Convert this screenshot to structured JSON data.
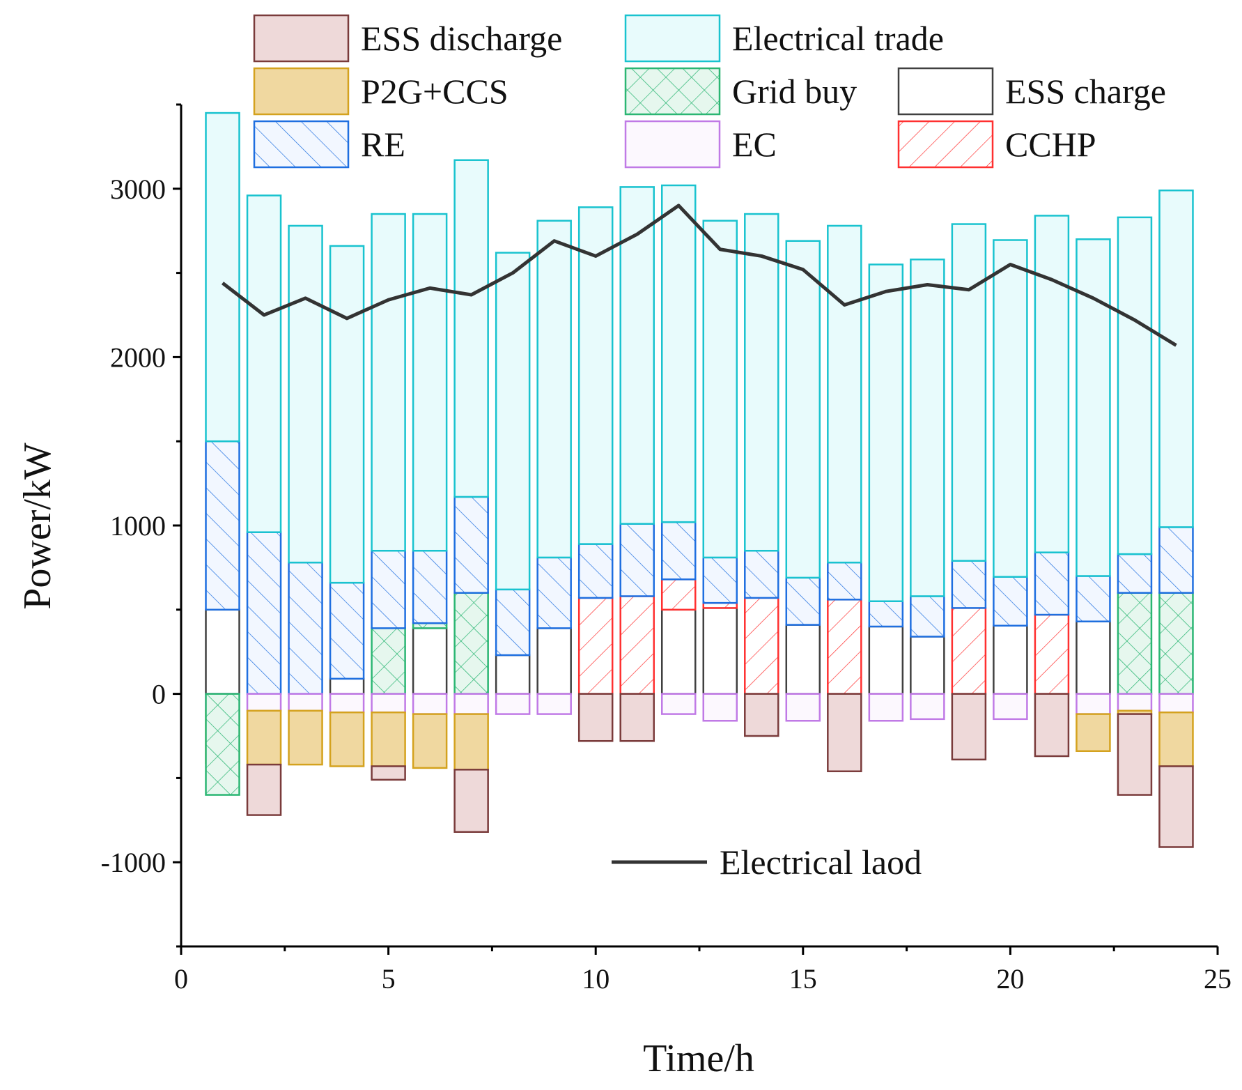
{
  "chart_data": {
    "type": "bar",
    "title": "",
    "xlabel": "Time/h",
    "ylabel": "Power/kW",
    "xlim": [
      0,
      25
    ],
    "ylim": [
      -1500,
      3500
    ],
    "xticks": [
      "0",
      "5",
      "10",
      "15",
      "20",
      "25"
    ],
    "yticks": [
      "-1000",
      "0",
      "1000",
      "2000",
      "3000"
    ],
    "x": [
      1,
      2,
      3,
      4,
      5,
      6,
      7,
      8,
      9,
      10,
      11,
      12,
      13,
      14,
      15,
      16,
      17,
      18,
      19,
      20,
      21,
      22,
      23,
      24
    ],
    "series": [
      {
        "name": "ESS charge",
        "key": "ess_charge",
        "stroke": "#404040",
        "fill": "#ffffff",
        "pattern": "none",
        "values": [
          500,
          0,
          0,
          90,
          0,
          390,
          0,
          230,
          390,
          0,
          0,
          500,
          510,
          0,
          410,
          0,
          400,
          340,
          0,
          405,
          0,
          430,
          0,
          0
        ]
      },
      {
        "name": "CCHP",
        "key": "cchp",
        "stroke": "#ff3030",
        "fill": "#ffffff",
        "pattern": "fdiag",
        "values": [
          0,
          0,
          0,
          0,
          0,
          0,
          0,
          0,
          0,
          570,
          580,
          180,
          30,
          570,
          0,
          560,
          0,
          0,
          510,
          0,
          470,
          0,
          0,
          0
        ]
      },
      {
        "name": "Grid buy",
        "key": "grid_buy",
        "stroke": "#2bb673",
        "fill": "#e6f7ee",
        "pattern": "cross",
        "values": [
          0,
          0,
          0,
          0,
          390,
          30,
          600,
          0,
          0,
          0,
          0,
          0,
          0,
          0,
          0,
          0,
          0,
          0,
          0,
          0,
          0,
          0,
          600,
          600
        ]
      },
      {
        "name": "RE",
        "key": "re",
        "stroke": "#1f6fe0",
        "fill": "#f2f7ff",
        "pattern": "bdiag",
        "values": [
          1000,
          960,
          780,
          570,
          460,
          430,
          570,
          390,
          420,
          320,
          430,
          340,
          270,
          280,
          280,
          220,
          150,
          240,
          280,
          290,
          370,
          270,
          230,
          390
        ]
      },
      {
        "name": "Electrical trade",
        "key": "trade",
        "stroke": "#19c3cf",
        "fill": "#e8fbfc",
        "pattern": "none",
        "values": [
          1950,
          2000,
          2000,
          2000,
          2000,
          2000,
          2000,
          2000,
          2000,
          2000,
          2000,
          2000,
          2000,
          2000,
          2000,
          2000,
          2000,
          2000,
          2000,
          2000,
          2000,
          2000,
          2000,
          2000
        ]
      },
      {
        "name": "EC",
        "key": "ec",
        "stroke": "#c07ae6",
        "fill": "#fcf8fe",
        "pattern": "none",
        "values": [
          -100,
          -100,
          -100,
          -110,
          -110,
          -120,
          -120,
          -120,
          -120,
          0,
          0,
          -120,
          -160,
          0,
          -160,
          0,
          -160,
          -150,
          0,
          -150,
          0,
          -120,
          -100,
          -110
        ]
      },
      {
        "name": "P2G+CCS",
        "key": "p2g",
        "stroke": "#d4a21e",
        "fill": "#f0d8a0",
        "pattern": "none",
        "values": [
          -310,
          -320,
          -320,
          -320,
          -320,
          -320,
          -330,
          0,
          0,
          0,
          0,
          0,
          0,
          0,
          0,
          0,
          0,
          0,
          0,
          0,
          0,
          -220,
          -20,
          -320
        ]
      },
      {
        "name": "ESS discharge",
        "key": "ess_dis",
        "stroke": "#7a3b3b",
        "fill": "#eed9d9",
        "pattern": "none",
        "values": [
          0,
          -300,
          0,
          0,
          -80,
          0,
          -370,
          0,
          0,
          -280,
          -280,
          0,
          0,
          -250,
          0,
          -460,
          0,
          0,
          -390,
          0,
          -370,
          0,
          -480,
          -480
        ]
      }
    ],
    "grid_buy_negative": [
      -600,
      0,
      0,
      0,
      0,
      0,
      0,
      0,
      0,
      0,
      0,
      0,
      0,
      0,
      0,
      0,
      0,
      0,
      0,
      0,
      0,
      0,
      0,
      0
    ],
    "lines": [
      {
        "name": "Electrical laod",
        "color": "#333333",
        "values": [
          2440,
          2250,
          2350,
          2230,
          2340,
          2410,
          2370,
          2500,
          2690,
          2600,
          2730,
          2900,
          2640,
          2600,
          2520,
          2310,
          2390,
          2430,
          2400,
          2550,
          2460,
          2350,
          2220,
          2070
        ]
      }
    ],
    "legend": {
      "placement": "top",
      "entries": [
        "ESS discharge",
        "Electrical trade",
        "P2G+CCS",
        "Grid buy",
        "ESS charge",
        "RE",
        "EC",
        "CCHP"
      ],
      "line_entry": "Electrical laod"
    }
  }
}
